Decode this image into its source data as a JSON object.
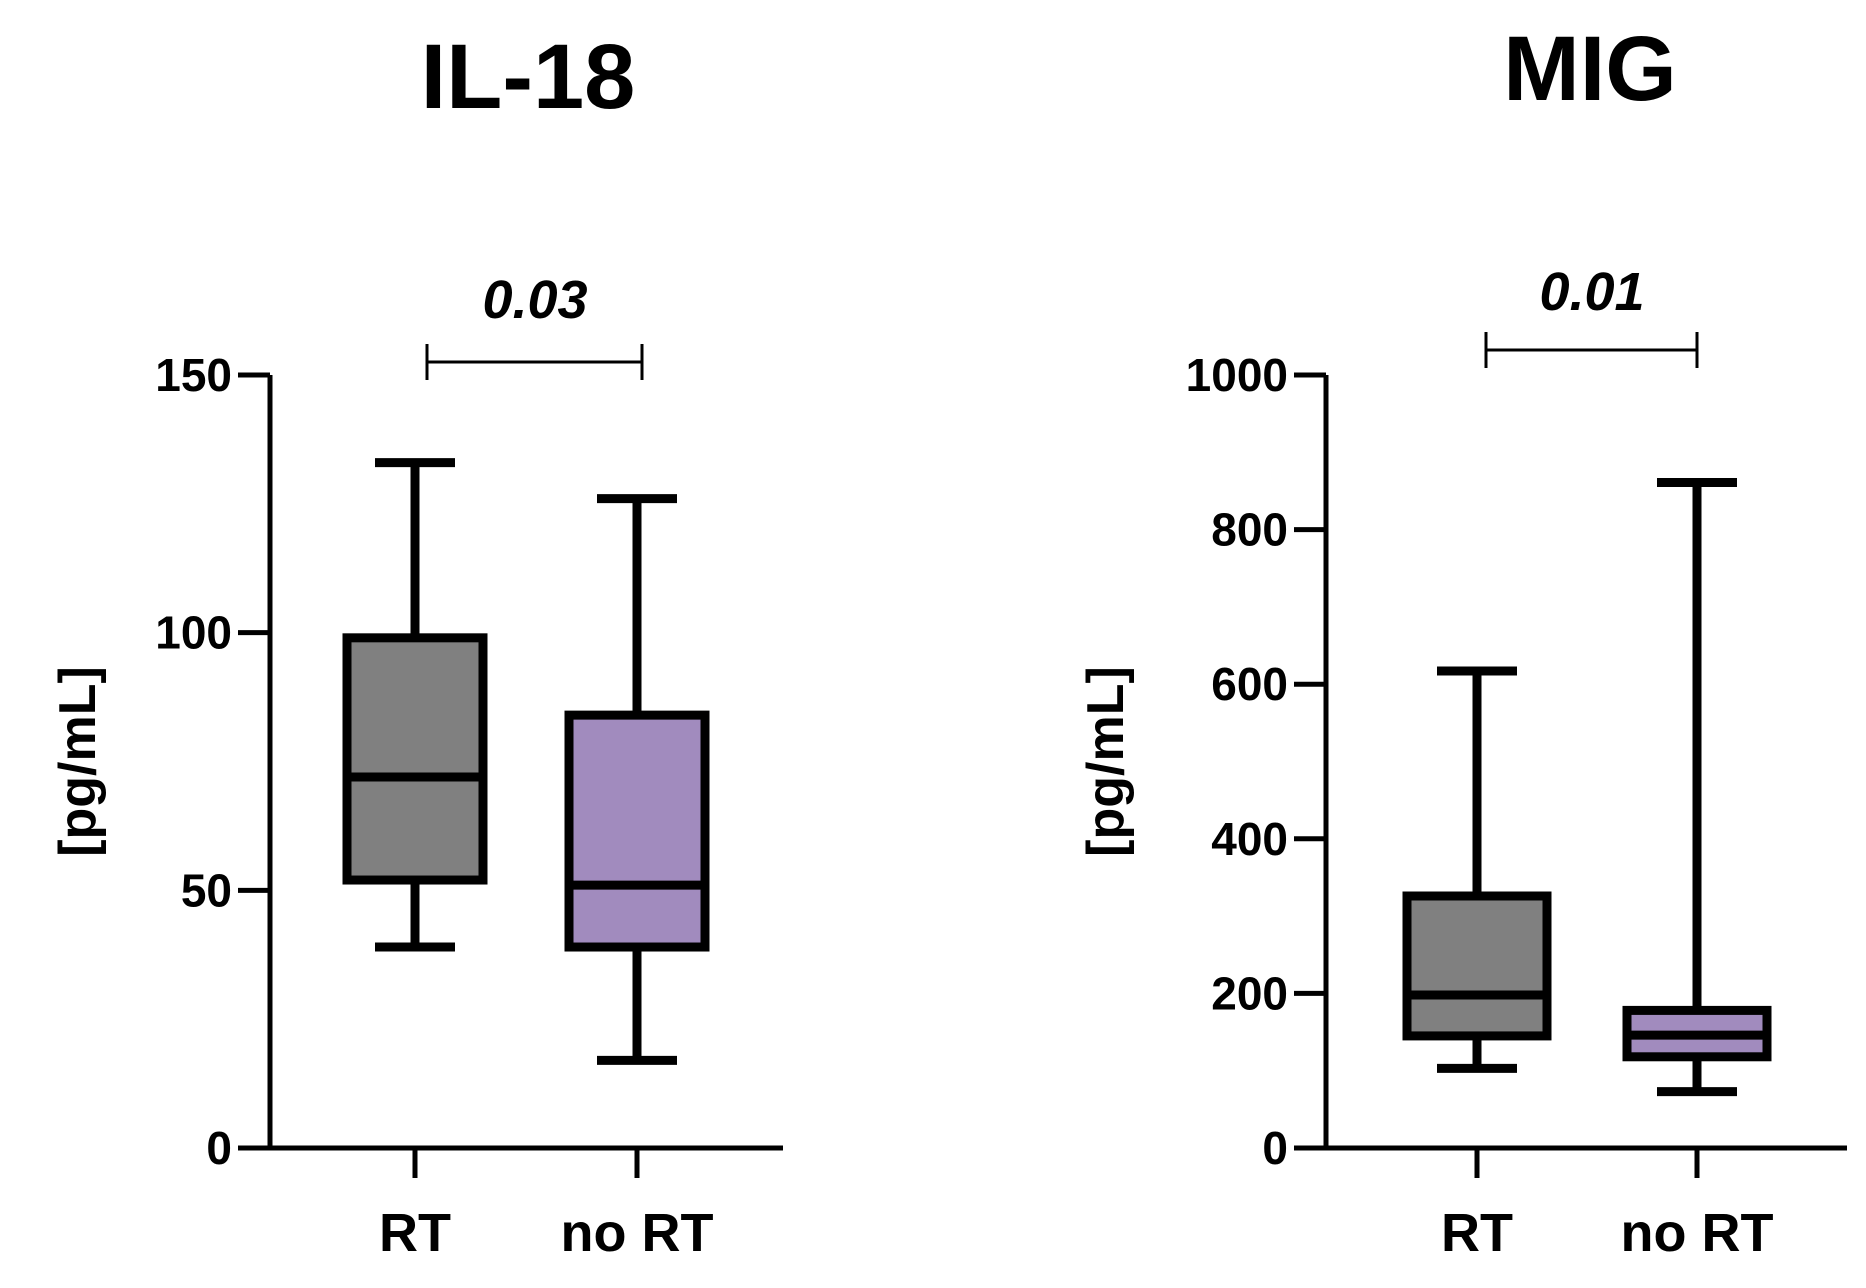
{
  "chart_data": [
    {
      "type": "box",
      "title": "IL-18",
      "ylabel": "[pg/mL]",
      "ylim": [
        0,
        150
      ],
      "yticks": [
        0,
        50,
        100,
        150
      ],
      "categories": [
        "RT",
        "no RT"
      ],
      "colors": [
        "#808080",
        "#a18bbe"
      ],
      "boxes": [
        {
          "category": "RT",
          "min": 39,
          "q1": 52,
          "median": 72,
          "q3": 99,
          "max": 133
        },
        {
          "category": "no RT",
          "min": 17,
          "q1": 39,
          "median": 51,
          "q3": 84,
          "max": 126
        }
      ],
      "comparison": {
        "between": [
          "RT",
          "no RT"
        ],
        "p_value": "0.03"
      }
    },
    {
      "type": "box",
      "title": "MIG",
      "ylabel": "[pg/mL]",
      "ylim": [
        0,
        1000
      ],
      "yticks": [
        0,
        200,
        400,
        600,
        800,
        1000
      ],
      "categories": [
        "RT",
        "no RT"
      ],
      "colors": [
        "#808080",
        "#a18bbe"
      ],
      "boxes": [
        {
          "category": "RT",
          "min": 103,
          "q1": 145,
          "median": 198,
          "q3": 326,
          "max": 617
        },
        {
          "category": "no RT",
          "min": 73,
          "q1": 118,
          "median": 146,
          "q3": 178,
          "max": 861
        }
      ],
      "comparison": {
        "between": [
          "RT",
          "no RT"
        ],
        "p_value": "0.01"
      }
    }
  ]
}
